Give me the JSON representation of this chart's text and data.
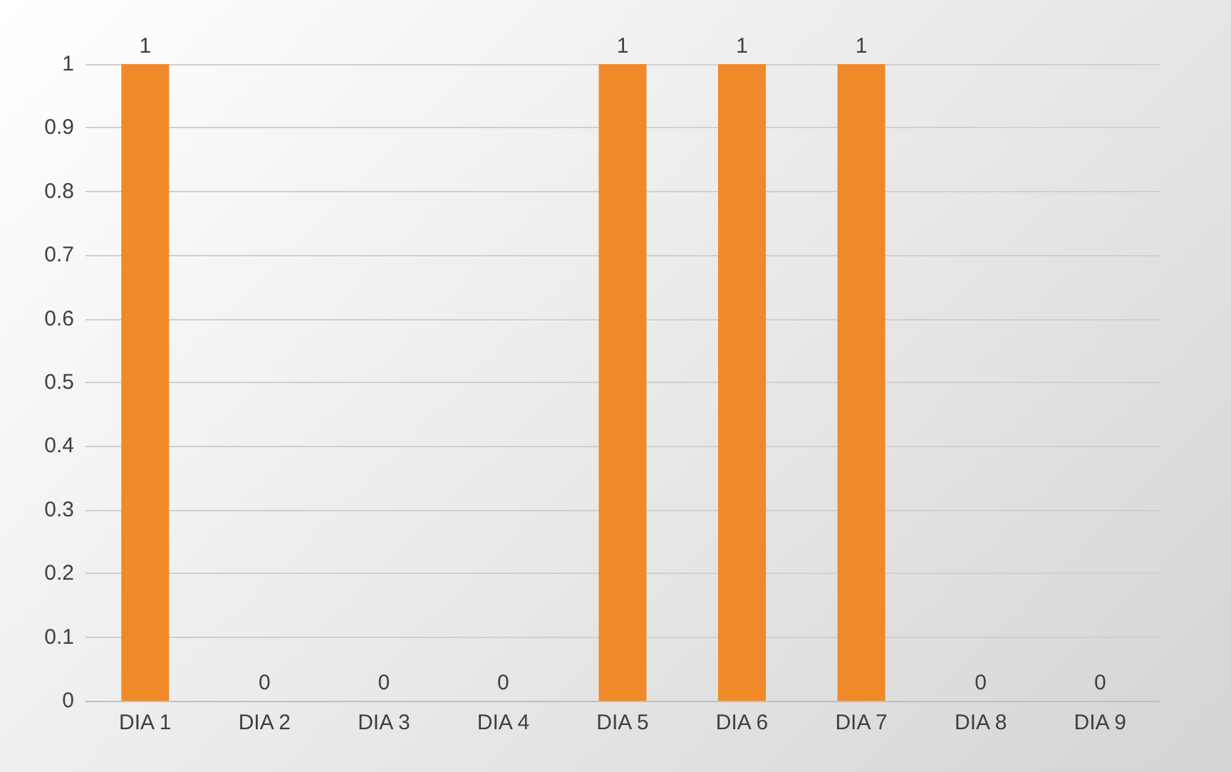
{
  "chart_data": {
    "type": "bar",
    "categories": [
      "DIA 1",
      "DIA 2",
      "DIA 3",
      "DIA 4",
      "DIA 5",
      "DIA 6",
      "DIA 7",
      "DIA 8",
      "DIA 9"
    ],
    "values": [
      1,
      0,
      0,
      0,
      1,
      1,
      1,
      0,
      0
    ],
    "color": "#f0892a",
    "ylim": [
      0,
      1
    ],
    "yticks": [
      0,
      0.1,
      0.2,
      0.3,
      0.4,
      0.5,
      0.6,
      0.7,
      0.8,
      0.9,
      1
    ],
    "grid": "y",
    "data_labels": true
  }
}
